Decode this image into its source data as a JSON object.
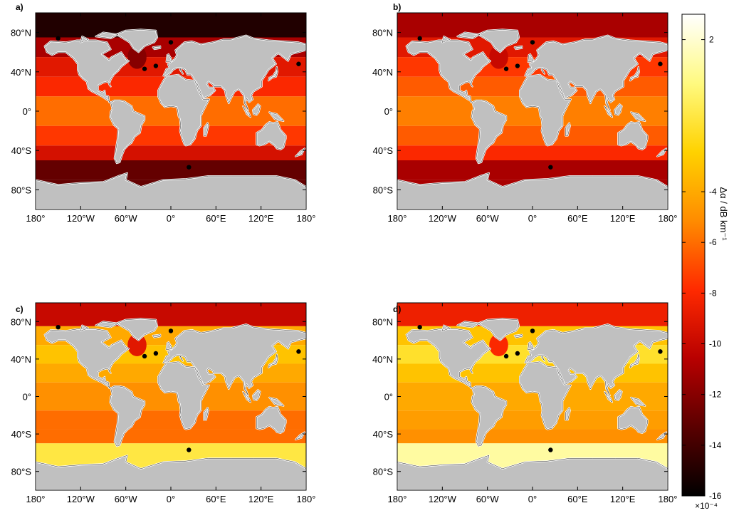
{
  "panels": [
    {
      "id": "a",
      "label": "a)"
    },
    {
      "id": "b",
      "label": "b)"
    },
    {
      "id": "c",
      "label": "c)"
    },
    {
      "id": "d",
      "label": "d)"
    }
  ],
  "x_ticks": [
    "180°",
    "120°W",
    "60°W",
    "0°",
    "60°E",
    "120°E",
    "180°"
  ],
  "y_ticks": [
    "80°N",
    "40°N",
    "0°",
    "40°S",
    "80°S"
  ],
  "colorbar": {
    "label": "Δα / dB km⁻¹",
    "ticks": [
      "2",
      "-4",
      "-6",
      "-8",
      "-10",
      "-12",
      "-14",
      "-16"
    ],
    "multiplier": "×10⁻⁴",
    "range": [
      -16,
      3
    ]
  },
  "colors": {
    "land": "#c0c0c0",
    "ramp": [
      "#000000",
      "#5a0000",
      "#b80000",
      "#ff2a00",
      "#ff8c00",
      "#ffd200",
      "#fffa80",
      "#ffffff"
    ]
  },
  "field_levels": {
    "a": {
      "arctic": -15,
      "n_high": -11,
      "n_mid": -9,
      "subtrop_n": -8,
      "trop": -6,
      "subtrop_s": -7.5,
      "s_mid": -9.5,
      "s_high": -13,
      "labrador": -12
    },
    "b": {
      "arctic": -11,
      "n_high": -9,
      "n_mid": -7.5,
      "subtrop_n": -6.5,
      "trop": -5.5,
      "subtrop_s": -6.5,
      "s_mid": -8,
      "s_high": -11,
      "labrador": -10
    },
    "c": {
      "arctic": -10,
      "n_high": -4,
      "n_mid": -3,
      "subtrop_n": -4,
      "trop": -5,
      "subtrop_s": -6,
      "s_mid": -6,
      "s_high": -1,
      "labrador": -9
    },
    "d": {
      "arctic": -8.5,
      "n_high": -3,
      "n_mid": -1.5,
      "subtrop_n": -3,
      "trop": -4,
      "subtrop_s": -4.5,
      "s_mid": -5,
      "s_high": 1,
      "labrador": -8
    }
  },
  "stations": [
    {
      "lon": -150,
      "lat": 74
    },
    {
      "lon": -35,
      "lat": 43
    },
    {
      "lon": -20,
      "lat": 46
    },
    {
      "lon": 0,
      "lat": 70
    },
    {
      "lon": 24,
      "lat": -57
    },
    {
      "lon": 170,
      "lat": 48
    }
  ]
}
